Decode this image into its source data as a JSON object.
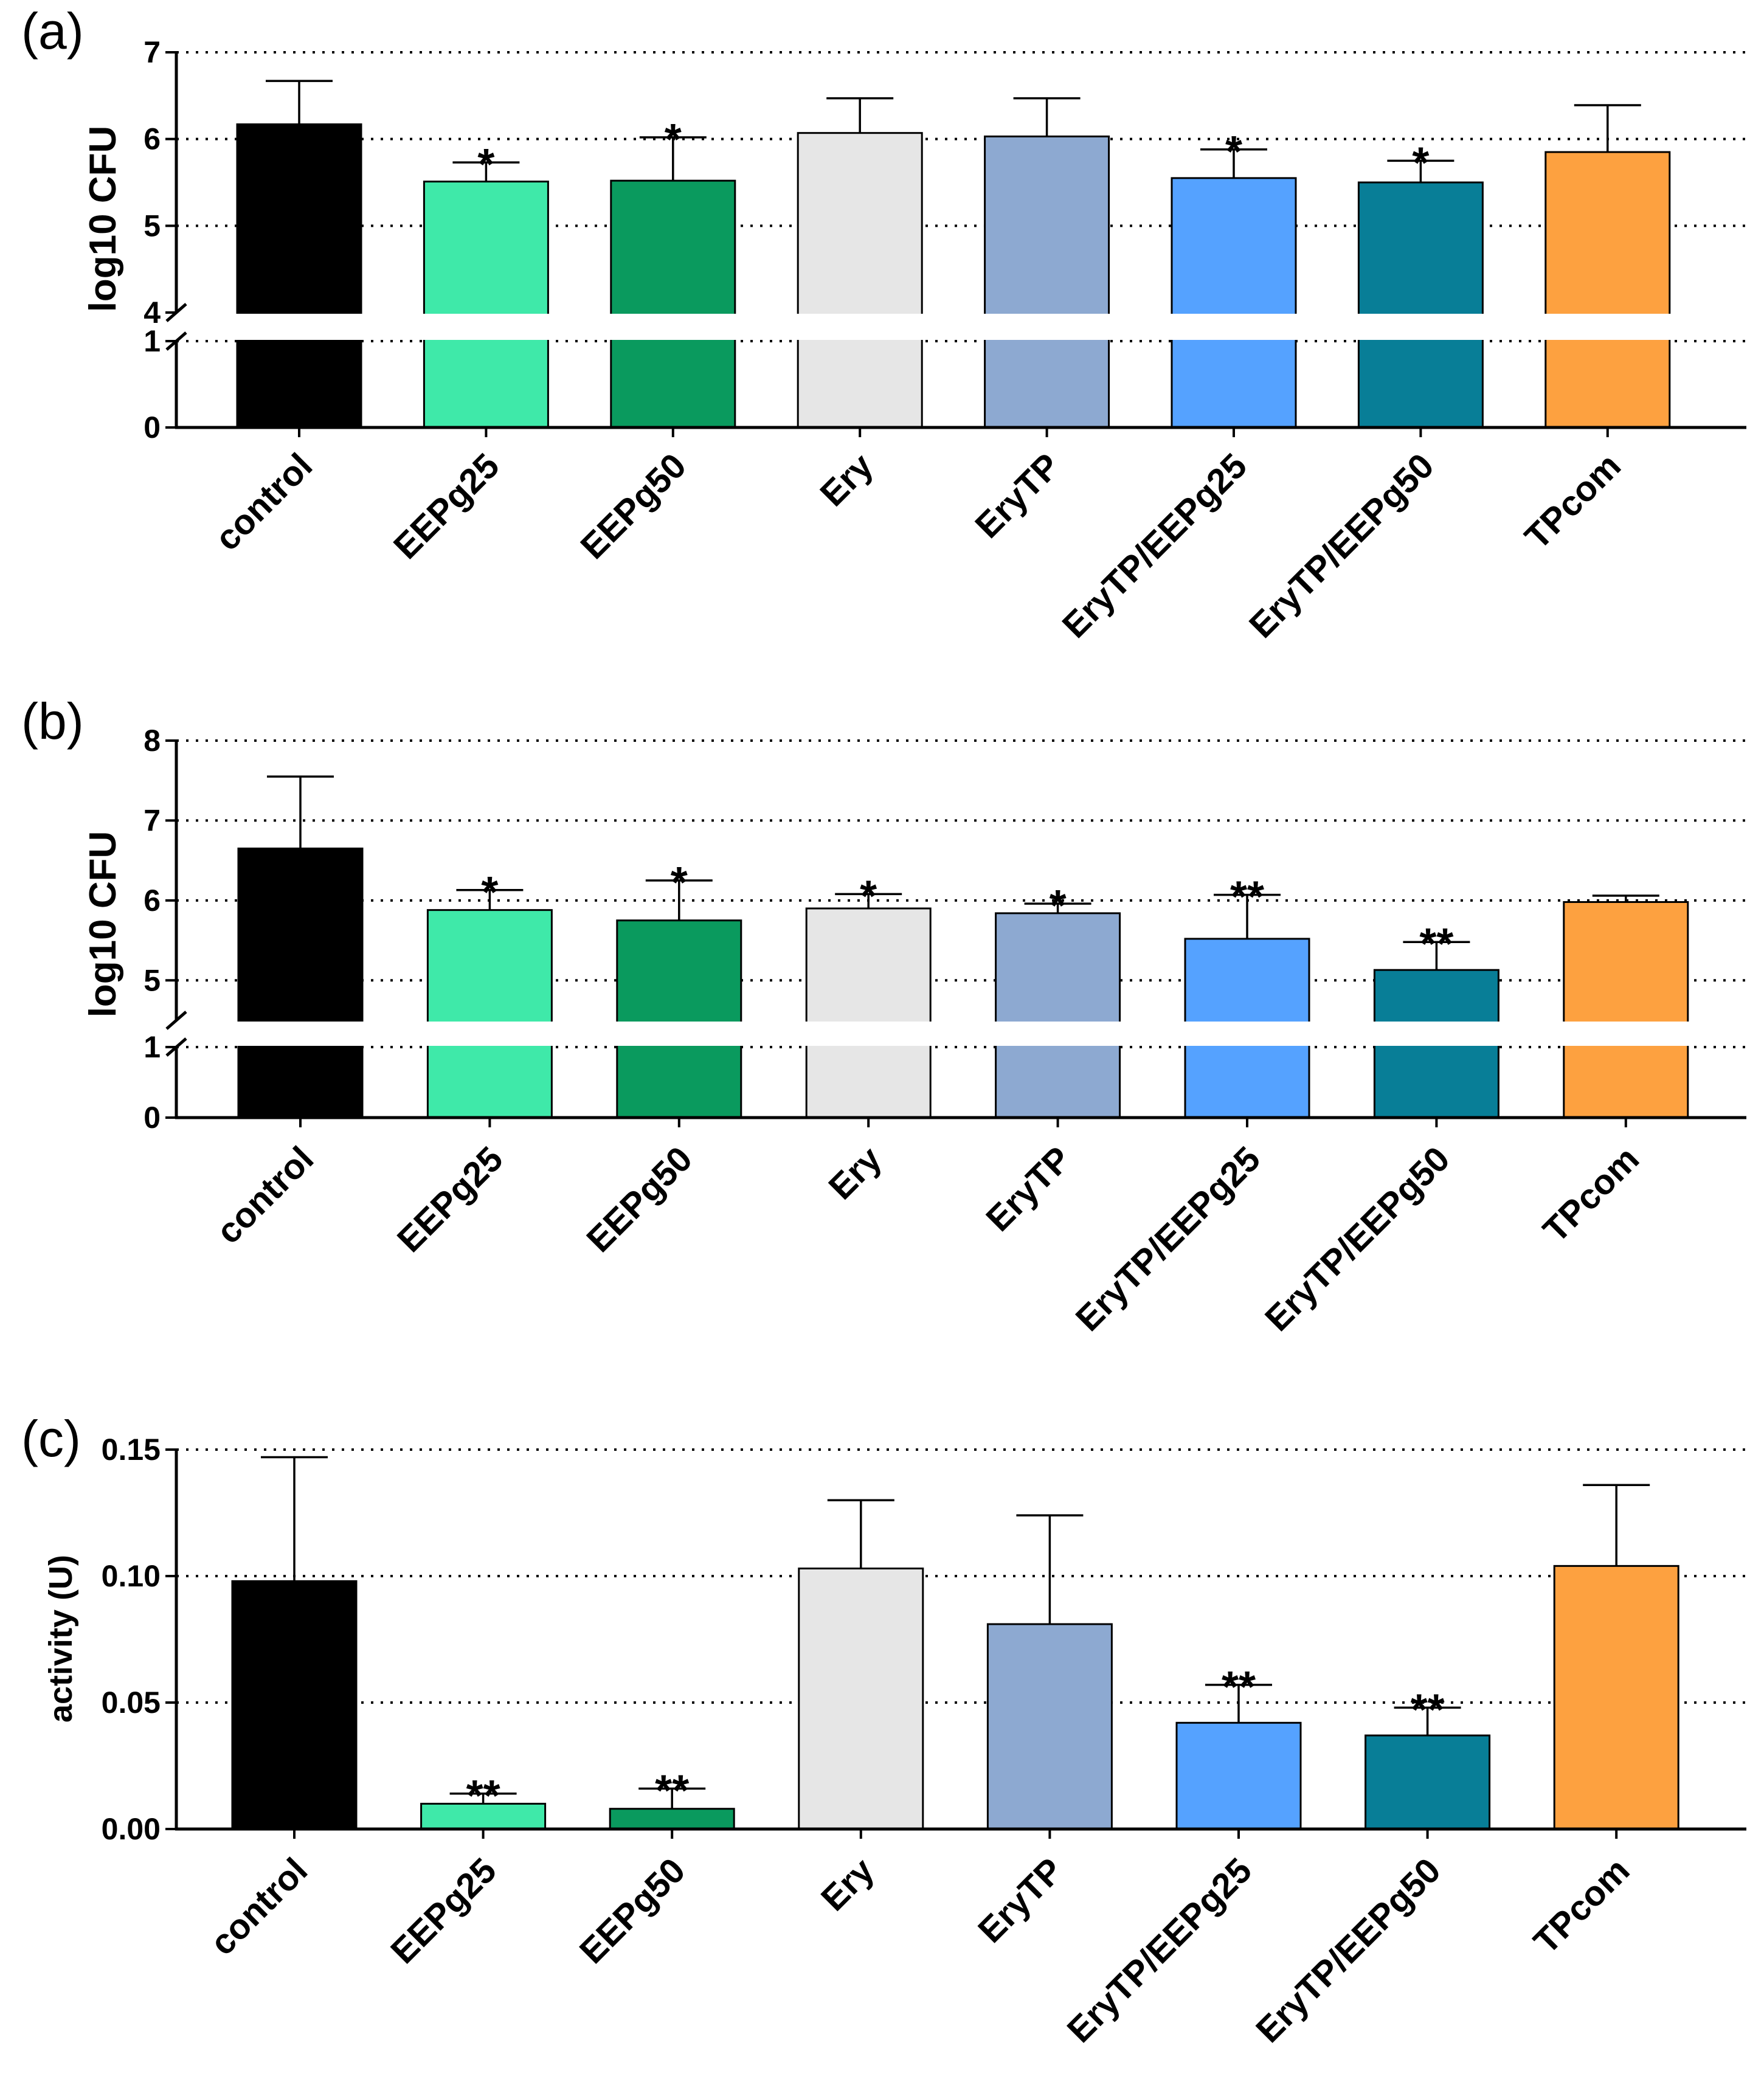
{
  "chart_data": [
    {
      "type": "bar",
      "panel_label": "(a)",
      "ylabel": "log10 CFU",
      "axis_break": {
        "lower": [
          0,
          1
        ],
        "upper": [
          4,
          7
        ]
      },
      "yticks_lower": [
        "0",
        "1"
      ],
      "yticks_upper": [
        "4",
        "5",
        "6",
        "7"
      ],
      "categories": [
        "control",
        "EEPg25",
        "EEPg50",
        "Ery",
        "EryTP",
        "EryTP/EEPg25",
        "EryTP/EEPg50",
        "TPcom"
      ],
      "values": [
        6.17,
        5.51,
        5.52,
        6.07,
        6.03,
        5.55,
        5.5,
        5.85
      ],
      "errors": [
        0.5,
        0.22,
        0.5,
        0.4,
        0.44,
        0.33,
        0.25,
        0.54
      ],
      "significance": [
        "",
        "*",
        "*",
        "",
        "",
        "*",
        "*",
        ""
      ],
      "colors": [
        "#000000",
        "#3FE9A9",
        "#0A9A5E",
        "#E6E6E6",
        "#8DA9D1",
        "#55A2FF",
        "#087E97",
        "#FDA140"
      ],
      "grid": true
    },
    {
      "type": "bar",
      "panel_label": "(b)",
      "ylabel": "log10 CFU",
      "axis_break": {
        "lower": [
          0,
          1
        ],
        "upper": [
          4.5,
          8
        ]
      },
      "yticks_lower": [
        "0",
        "1"
      ],
      "yticks_upper": [
        "5",
        "6",
        "7",
        "8"
      ],
      "categories": [
        "control",
        "EEPg25",
        "EEPg50",
        "Ery",
        "EryTP",
        "EryTP/EEPg25",
        "EryTP/EEPg50",
        "TPcom"
      ],
      "values": [
        6.65,
        5.88,
        5.75,
        5.9,
        5.84,
        5.52,
        5.13,
        5.98
      ],
      "errors": [
        0.9,
        0.25,
        0.5,
        0.18,
        0.12,
        0.55,
        0.35,
        0.08
      ],
      "significance": [
        "",
        "*",
        "*",
        "*",
        "*",
        "**",
        "**",
        ""
      ],
      "colors": [
        "#000000",
        "#3FE9A9",
        "#0A9A5E",
        "#E6E6E6",
        "#8DA9D1",
        "#55A2FF",
        "#087E97",
        "#FDA140"
      ],
      "grid": true
    },
    {
      "type": "bar",
      "panel_label": "(c)",
      "ylabel": "activity (U)",
      "ylim": [
        0,
        0.15
      ],
      "yticks": [
        "0.00",
        "0.05",
        "0.10",
        "0.15"
      ],
      "categories": [
        "control",
        "EEPg25",
        "EEPg50",
        "Ery",
        "EryTP",
        "EryTP/EEPg25",
        "EryTP/EEPg50",
        "TPcom"
      ],
      "values": [
        0.098,
        0.01,
        0.008,
        0.103,
        0.081,
        0.042,
        0.037,
        0.104
      ],
      "errors": [
        0.049,
        0.004,
        0.008,
        0.027,
        0.043,
        0.015,
        0.011,
        0.032
      ],
      "significance": [
        "",
        "**",
        "**",
        "",
        "",
        "**",
        "**",
        ""
      ],
      "colors": [
        "#000000",
        "#3FE9A9",
        "#0A9A5E",
        "#E6E6E6",
        "#8DA9D1",
        "#55A2FF",
        "#087E97",
        "#FDA140"
      ],
      "grid": true
    }
  ]
}
